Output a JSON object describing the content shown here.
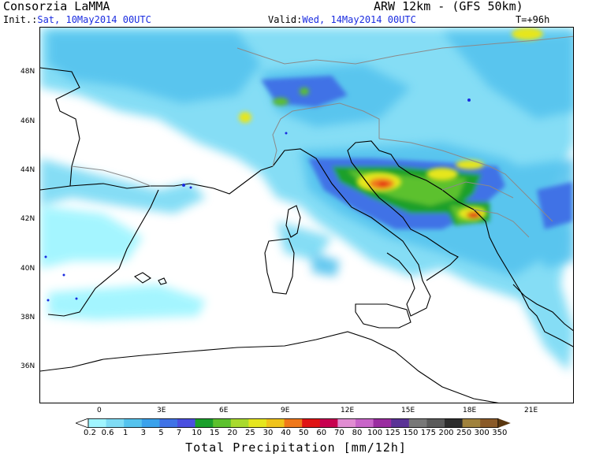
{
  "header": {
    "title": "Consorzia LaMMA",
    "model": "ARW 12km - (GFS 50km)",
    "init_label": "Init.:",
    "init_value": "Sat, 10May2014 00UTC",
    "valid_label": "Valid:",
    "valid_value": "Wed, 14May2014 00UTC",
    "lead_time": "T=+96h"
  },
  "map": {
    "lat_labels": [
      "48N",
      "46N",
      "44N",
      "42N",
      "40N",
      "38N",
      "36N"
    ],
    "lon_labels": [
      "0",
      "3E",
      "6E",
      "9E",
      "12E",
      "15E",
      "18E",
      "21E"
    ],
    "land_outline_color": "#000000",
    "border_color": "#8a8a8a"
  },
  "colorbar": {
    "title": "Total Precipitation [mm/12h]",
    "levels": [
      "0.2",
      "0.6",
      "1",
      "3",
      "5",
      "7",
      "10",
      "15",
      "20",
      "25",
      "30",
      "40",
      "50",
      "60",
      "70",
      "80",
      "100",
      "125",
      "150",
      "175",
      "200",
      "250",
      "300",
      "350"
    ],
    "colors": [
      "#a0f5ff",
      "#7fdcf5",
      "#55c3ee",
      "#3aa2ec",
      "#3f72e6",
      "#4a4fe0",
      "#1ba02c",
      "#5cc12d",
      "#a9da2d",
      "#e6e61e",
      "#f0c31a",
      "#f0781a",
      "#e01414",
      "#c80050",
      "#e18cd2",
      "#c864c8",
      "#9a2ca0",
      "#5a3296",
      "#787878",
      "#5a5a5a",
      "#2d2d2d",
      "#a0823c",
      "#8a5a28",
      "#5a370f"
    ]
  }
}
